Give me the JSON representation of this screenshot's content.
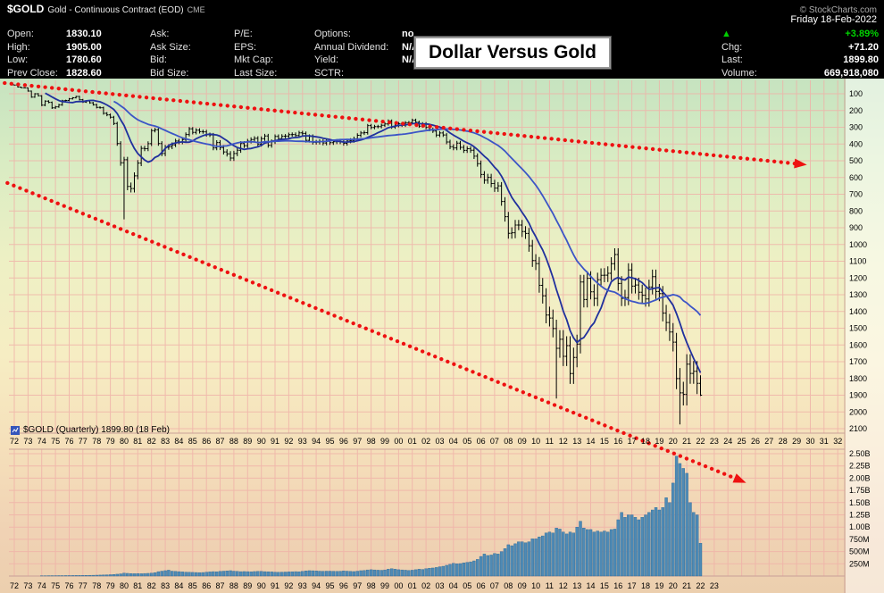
{
  "header": {
    "symbol": "$GOLD",
    "description": "Gold - Continuous Contract (EOD)",
    "exchange": "CME",
    "copyright": "© StockCharts.com",
    "date": "Friday 18-Feb-2022",
    "quote": {
      "col1": [
        {
          "label": "Open:",
          "value": "1830.10"
        },
        {
          "label": "High:",
          "value": "1905.00"
        },
        {
          "label": "Low:",
          "value": "1780.60"
        },
        {
          "label": "Prev Close:",
          "value": "1828.60"
        }
      ],
      "col2": [
        {
          "label": "Ask:",
          "value": ""
        },
        {
          "label": "Ask Size:",
          "value": ""
        },
        {
          "label": "Bid:",
          "value": ""
        },
        {
          "label": "Bid Size:",
          "value": ""
        }
      ],
      "col3": [
        {
          "label": "P/E:",
          "value": ""
        },
        {
          "label": "EPS:",
          "value": ""
        },
        {
          "label": "Mkt Cap:",
          "value": ""
        },
        {
          "label": "Last Size:",
          "value": ""
        }
      ],
      "col4": [
        {
          "label": "Options:",
          "value": "no"
        },
        {
          "label": "Annual Dividend:",
          "value": "N/A"
        },
        {
          "label": "Yield:",
          "value": "N/A"
        },
        {
          "label": "SCTR:",
          "value": ""
        }
      ],
      "up_arrow_icon": "▲",
      "change_pct": "+3.89%",
      "chg": {
        "label": "Chg:",
        "value": "+71.20"
      },
      "last": {
        "label": "Last:",
        "value": "1899.80"
      },
      "volume": {
        "label": "Volume:",
        "value": "669,918,080"
      }
    }
  },
  "overlay_title": "Dollar Versus Gold",
  "chart_data": {
    "type": "bar",
    "title": "Dollar Versus Gold",
    "symbol": "$GOLD",
    "frequency": "Quarterly",
    "legend": "$GOLD (Quarterly) 1899.80 (18 Feb)",
    "start_year": 1972,
    "y_axis": {
      "inverted": true,
      "min": 100,
      "max": 2100,
      "ticks": [
        100,
        200,
        300,
        400,
        500,
        600,
        700,
        800,
        900,
        1000,
        1100,
        1200,
        1300,
        1400,
        1500,
        1600,
        1700,
        1800,
        1900,
        2000,
        2100
      ]
    },
    "x_tick_labels": [
      "72",
      "73",
      "74",
      "75",
      "76",
      "77",
      "78",
      "79",
      "80",
      "81",
      "82",
      "83",
      "84",
      "85",
      "86",
      "87",
      "88",
      "89",
      "90",
      "91",
      "92",
      "93",
      "94",
      "95",
      "96",
      "97",
      "98",
      "99",
      "00",
      "01",
      "02",
      "03",
      "04",
      "05",
      "06",
      "07",
      "08",
      "09",
      "10",
      "11",
      "12",
      "13",
      "14",
      "15",
      "16",
      "17",
      "18",
      "19",
      "20",
      "21",
      "22",
      "23",
      "24",
      "25",
      "26",
      "27",
      "28",
      "29",
      "30",
      "31",
      "32"
    ],
    "x_tick_labels_bottom": [
      "72",
      "73",
      "74",
      "75",
      "76",
      "77",
      "78",
      "79",
      "80",
      "81",
      "82",
      "83",
      "84",
      "85",
      "86",
      "87",
      "88",
      "89",
      "90",
      "91",
      "92",
      "93",
      "94",
      "95",
      "96",
      "97",
      "98",
      "99",
      "00",
      "01",
      "02",
      "03",
      "04",
      "05",
      "06",
      "07",
      "08",
      "09",
      "10",
      "11",
      "12",
      "13",
      "14",
      "15",
      "16",
      "17",
      "18",
      "19",
      "20",
      "21",
      "22",
      "23"
    ],
    "close": [
      48,
      60,
      64,
      65,
      84,
      120,
      100,
      112,
      168,
      144,
      151,
      184,
      178,
      166,
      141,
      140,
      130,
      124,
      116,
      135,
      149,
      143,
      154,
      165,
      181,
      183,
      217,
      226,
      240,
      277,
      397,
      512,
      494,
      653,
      666,
      590,
      514,
      426,
      428,
      398,
      320,
      315,
      397,
      457,
      420,
      416,
      405,
      382,
      388,
      373,
      343,
      309,
      331,
      317,
      326,
      327,
      344,
      346,
      423,
      391,
      421,
      447,
      459,
      484,
      457,
      437,
      397,
      410,
      383,
      373,
      366,
      401,
      368,
      352,
      408,
      386,
      355,
      368,
      354,
      353,
      344,
      343,
      349,
      333,
      337,
      378,
      355,
      390,
      389,
      385,
      394,
      383,
      392,
      387,
      384,
      387,
      396,
      382,
      379,
      369,
      348,
      334,
      332,
      290,
      301,
      296,
      296,
      288,
      280,
      262,
      299,
      290,
      278,
      288,
      273,
      272,
      258,
      270,
      293,
      279,
      301,
      313,
      323,
      347,
      334,
      346,
      388,
      416,
      423,
      395,
      420,
      438,
      428,
      437,
      473,
      517,
      582,
      616,
      599,
      636,
      663,
      650,
      743,
      834,
      933,
      930,
      884,
      884,
      923,
      934,
      1008,
      1096,
      1114,
      1244,
      1307,
      1421,
      1439,
      1502,
      1620,
      1566,
      1668,
      1604,
      1771,
      1675,
      1595,
      1224,
      1329,
      1202,
      1283,
      1322,
      1211,
      1184,
      1183,
      1172,
      1115,
      1060,
      1233,
      1322,
      1317,
      1152,
      1249,
      1242,
      1285,
      1303,
      1325,
      1254,
      1192,
      1281,
      1293,
      1410,
      1466,
      1523,
      1583,
      1801,
      1886,
      1895,
      1715,
      1770,
      1757,
      1829,
      1899.8
    ],
    "bar_overrides": {
      "32": {
        "high": 850
      },
      "158": {
        "high": 1920
      },
      "194": {
        "high": 2075
      },
      "200": {
        "high": 1905,
        "low": 1781
      }
    },
    "moving_averages": [
      {
        "name": "fast-ma",
        "period": 10,
        "color": "#20309d"
      },
      {
        "name": "slow-ma",
        "period": 30,
        "color": "#3c55c6"
      }
    ],
    "trendlines": [
      {
        "name": "upper-downtrend-arrow",
        "from_year": 1971.3,
        "from_price": 36,
        "to_year": 2029.3,
        "to_price": 520,
        "color": "#ee1111",
        "style": "dotted"
      },
      {
        "name": "lower-downtrend-arrow",
        "from_year": 1971.5,
        "from_price": 633,
        "to_year": 2024.9,
        "to_price": 2409,
        "color": "#ee1111",
        "style": "dotted"
      }
    ],
    "volume": {
      "bar_color": "#4e8ab5",
      "ticks": [
        {
          "label": "2.50B",
          "value": 2500
        },
        {
          "label": "2.25B",
          "value": 2250
        },
        {
          "label": "2.00B",
          "value": 2000
        },
        {
          "label": "1.75B",
          "value": 1750
        },
        {
          "label": "1.50B",
          "value": 1500
        },
        {
          "label": "1.25B",
          "value": 1250
        },
        {
          "label": "1.00B",
          "value": 1000
        },
        {
          "label": "750M",
          "value": 750
        },
        {
          "label": "500M",
          "value": 500
        },
        {
          "label": "250M",
          "value": 250
        }
      ],
      "values": [
        2,
        2,
        3,
        3,
        4,
        4,
        5,
        5,
        6,
        6,
        7,
        8,
        8,
        9,
        9,
        10,
        10,
        11,
        12,
        12,
        13,
        14,
        15,
        16,
        18,
        20,
        22,
        25,
        28,
        32,
        38,
        45,
        60,
        55,
        50,
        48,
        50,
        48,
        52,
        55,
        60,
        70,
        90,
        100,
        110,
        120,
        100,
        95,
        90,
        85,
        80,
        78,
        75,
        72,
        70,
        72,
        80,
        85,
        90,
        88,
        95,
        100,
        105,
        110,
        100,
        95,
        90,
        92,
        90,
        88,
        92,
        95,
        95,
        90,
        88,
        85,
        80,
        78,
        80,
        82,
        85,
        88,
        90,
        88,
        95,
        105,
        110,
        108,
        105,
        100,
        98,
        100,
        100,
        98,
        96,
        98,
        105,
        100,
        95,
        92,
        100,
        110,
        115,
        125,
        130,
        125,
        120,
        118,
        125,
        140,
        150,
        140,
        130,
        125,
        120,
        115,
        120,
        130,
        140,
        135,
        150,
        160,
        165,
        175,
        190,
        200,
        220,
        240,
        260,
        250,
        255,
        270,
        280,
        290,
        310,
        340,
        400,
        450,
        420,
        430,
        460,
        450,
        500,
        560,
        640,
        620,
        660,
        700,
        700,
        680,
        700,
        760,
        760,
        800,
        820,
        880,
        900,
        880,
        980,
        960,
        900,
        860,
        900,
        880,
        1000,
        1120,
        980,
        950,
        950,
        900,
        920,
        900,
        920,
        900,
        950,
        960,
        1150,
        1300,
        1200,
        1250,
        1250,
        1200,
        1150,
        1200,
        1250,
        1300,
        1350,
        1400,
        1350,
        1400,
        1600,
        1500,
        1900,
        2450,
        2300,
        2200,
        2100,
        1500,
        1300,
        1250,
        670
      ]
    }
  }
}
